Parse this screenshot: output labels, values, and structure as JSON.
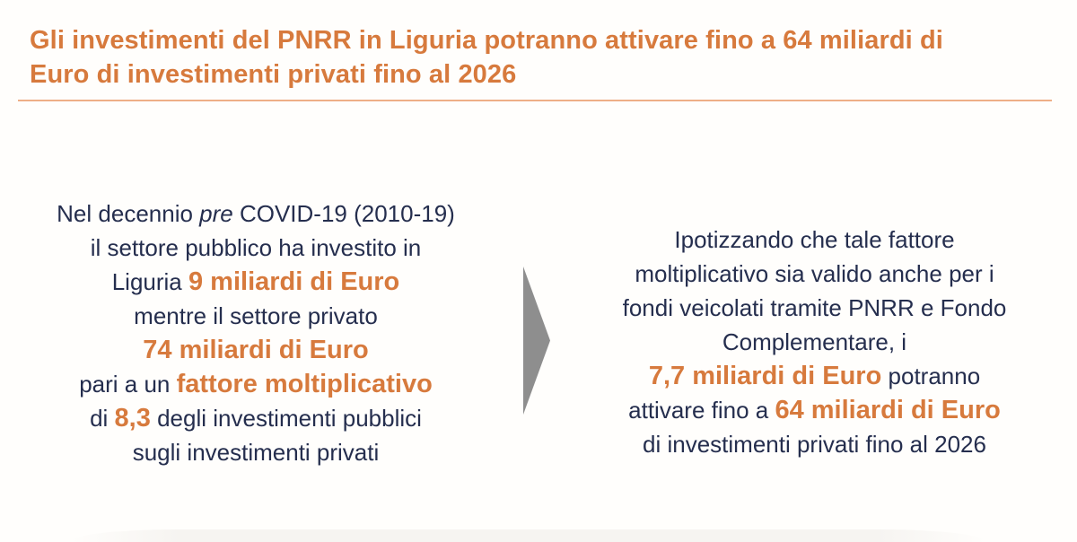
{
  "colors": {
    "accent": "#D77A3D",
    "body_text": "#252E4E",
    "divider": "#EEAF87",
    "arrow": "#8E8E8E",
    "background": "#FFFEFC"
  },
  "title": {
    "line1": "Gli investimenti del PNRR in Liguria potranno attivare fino a 64 miliardi di",
    "line2": "Euro di investimenti privati fino al 2026"
  },
  "arrow": {
    "icon": "right-arrow-icon"
  },
  "left_block": {
    "lines": [
      [
        {
          "t": "Nel decennio ",
          "s": "n"
        },
        {
          "t": "pre",
          "s": "i"
        },
        {
          "t": " COVID-19 (2010-19)",
          "s": "n"
        }
      ],
      [
        {
          "t": "il settore pubblico ha investito in",
          "s": "n"
        }
      ],
      [
        {
          "t": "Liguria ",
          "s": "n"
        },
        {
          "t": "9 miliardi di Euro",
          "s": "o"
        }
      ],
      [
        {
          "t": "mentre il settore privato",
          "s": "n"
        }
      ],
      [
        {
          "t": "74 miliardi di Euro",
          "s": "o"
        }
      ],
      [
        {
          "t": "pari a un ",
          "s": "n"
        },
        {
          "t": "fattore moltiplicativo",
          "s": "o"
        }
      ],
      [
        {
          "t": "di ",
          "s": "n"
        },
        {
          "t": "8,3",
          "s": "o"
        },
        {
          "t": " degli investimenti pubblici",
          "s": "n"
        }
      ],
      [
        {
          "t": "sugli investimenti privati",
          "s": "n"
        }
      ]
    ]
  },
  "right_block": {
    "lines": [
      [
        {
          "t": "Ipotizzando che tale fattore",
          "s": "n"
        }
      ],
      [
        {
          "t": "moltiplicativo sia valido anche per i",
          "s": "n"
        }
      ],
      [
        {
          "t": "fondi veicolati tramite PNRR e Fondo",
          "s": "n"
        }
      ],
      [
        {
          "t": "Complementare, i",
          "s": "n"
        }
      ],
      [
        {
          "t": "7,7 miliardi di Euro",
          "s": "o"
        },
        {
          "t": " potranno",
          "s": "n"
        }
      ],
      [
        {
          "t": "attivare fino a ",
          "s": "n"
        },
        {
          "t": "64 miliardi di Euro",
          "s": "o"
        }
      ],
      [
        {
          "t": "di investimenti privati fino al 2026",
          "s": "n"
        }
      ]
    ]
  }
}
